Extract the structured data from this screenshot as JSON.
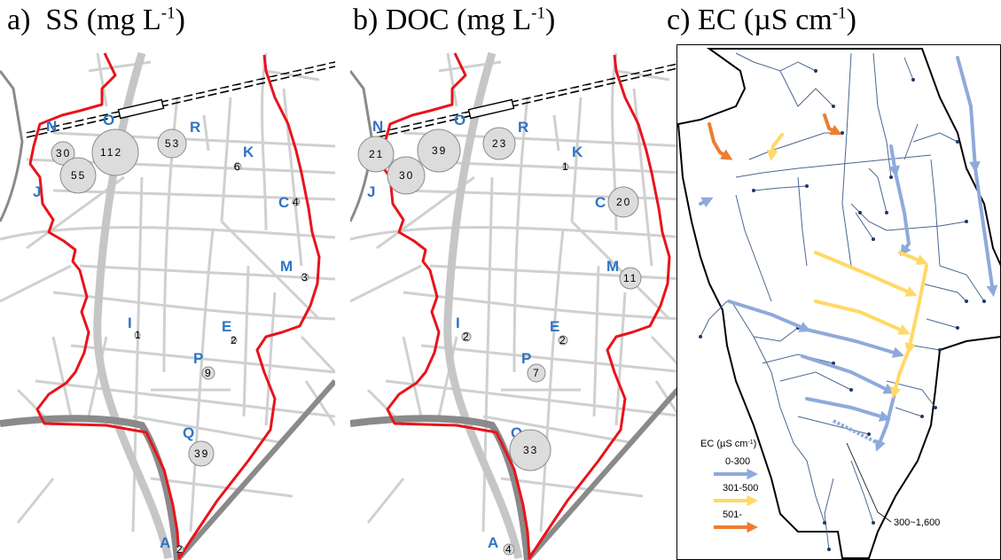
{
  "panels": {
    "a": {
      "prefix": "a)",
      "name": "SS",
      "unit_base": "(mg L",
      "unit_exp": "-1",
      "unit_close": ")"
    },
    "b": {
      "prefix": "b)",
      "name": "DOC",
      "unit_base": "(mg L",
      "unit_exp": "-1",
      "unit_close": ")"
    },
    "c": {
      "prefix": "c)",
      "name": "EC",
      "unit_base": "(µS cm",
      "unit_exp": "-1",
      "unit_close": ")"
    }
  },
  "sites": {
    "N": "N",
    "O": "O",
    "R": "R",
    "K": "K",
    "J": "J",
    "C": "C",
    "M": "M",
    "I": "I",
    "E": "E",
    "P": "P",
    "Q": "Q",
    "A": "A"
  },
  "ss_values": {
    "N": "30",
    "O": "112",
    "J": "55",
    "R": "53",
    "K": "6",
    "C": "4",
    "M": "3",
    "I": "1",
    "E": "2",
    "P": "9",
    "Q": "39",
    "A": "2"
  },
  "doc_values": {
    "N": "21",
    "O": "39",
    "J": "30",
    "R": "23",
    "K": "1",
    "C": "20",
    "M": "11",
    "I": "2",
    "E": "2",
    "P": "7",
    "Q": "33",
    "A": "4"
  },
  "ec_legend": {
    "title": "EC (µS cm",
    "title_exp": "-1",
    "title_close": ")",
    "classes": [
      {
        "label": "0-300",
        "color": "#8eaadb"
      },
      {
        "label": "301-500",
        "color": "#ffd966"
      },
      {
        "label": "501-",
        "color": "#ed7d31"
      }
    ],
    "callout": "300~1,600"
  },
  "colors": {
    "boundary": "#e8141b",
    "road": "#d0d0d0",
    "major_road": "#c4c4c4",
    "river": "#7f7f7f",
    "bubble_fill": "#dcdcdc",
    "bubble_stroke": "#8a8a8a",
    "site_label": "#2f74c2"
  }
}
